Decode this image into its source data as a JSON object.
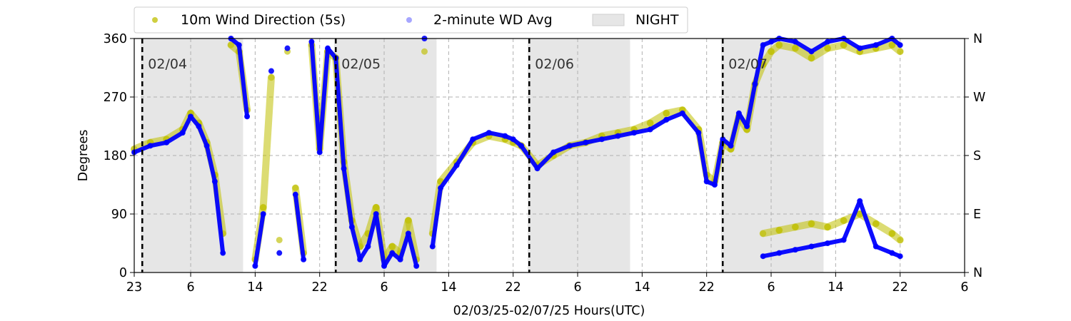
{
  "chart_data": {
    "type": "scatter",
    "xlabel": "02/03/25-02/07/25  Hours(UTC)",
    "ylabel": "Degrees",
    "ylim": [
      0,
      360
    ],
    "xlim_hours_from_start": [
      0,
      103
    ],
    "x_ticks": [
      "23",
      "6",
      "14",
      "22",
      "6",
      "14",
      "22",
      "6",
      "14",
      "22",
      "6",
      "14",
      "22",
      "6"
    ],
    "x_tick_hours": [
      0,
      7,
      15,
      23,
      31,
      39,
      47,
      55,
      63,
      71,
      79,
      87,
      95,
      103
    ],
    "y_ticks": [
      "0",
      "90",
      "180",
      "270",
      "360"
    ],
    "y_tick_values": [
      0,
      90,
      180,
      270,
      360
    ],
    "y2_ticks": [
      "N",
      "E",
      "S",
      "W",
      "N"
    ],
    "grid": true,
    "legend": {
      "placement": "top-left, above plot",
      "entries": [
        "10m Wind Direction (5s)",
        "2-minute WD Avg",
        "NIGHT"
      ]
    },
    "day_markers": [
      {
        "hour": 1.0,
        "label": "02/04"
      },
      {
        "hour": 25.0,
        "label": "02/05"
      },
      {
        "hour": 49.0,
        "label": "02/06"
      },
      {
        "hour": 73.0,
        "label": "02/07"
      }
    ],
    "night_bands": [
      [
        0.8,
        13.5
      ],
      [
        24.8,
        37.5
      ],
      [
        48.8,
        61.5
      ],
      [
        72.8,
        85.5
      ]
    ],
    "colors": {
      "wind_direction": "#bfbf00",
      "wd_avg": "#0000ff",
      "night": "#e6e6e6",
      "grid": "#b0b0b0",
      "day_marker": "#000000"
    },
    "series": [
      {
        "name": "10m Wind Direction (5s)",
        "color": "#bfbf00",
        "x": [
          0,
          2,
          4,
          6,
          7,
          8,
          9,
          10,
          11,
          12,
          13,
          14,
          15,
          16,
          17,
          18,
          19,
          20,
          21,
          22,
          23,
          24,
          25,
          26,
          27,
          28,
          29,
          30,
          31,
          32,
          33,
          34,
          35,
          36,
          37,
          38,
          40,
          42,
          44,
          46,
          47,
          48,
          50,
          52,
          54,
          56,
          58,
          60,
          62,
          64,
          66,
          68,
          70,
          71,
          72,
          73,
          74,
          75,
          76,
          77,
          78,
          79,
          80,
          82,
          84,
          86,
          88,
          90,
          92,
          94,
          95
        ],
        "values": [
          190,
          200,
          205,
          220,
          245,
          230,
          200,
          150,
          60,
          350,
          340,
          250,
          20,
          100,
          300,
          50,
          340,
          130,
          30,
          350,
          190,
          340,
          330,
          170,
          80,
          40,
          60,
          100,
          20,
          40,
          30,
          80,
          20,
          340,
          60,
          140,
          170,
          200,
          210,
          205,
          200,
          195,
          165,
          180,
          195,
          200,
          210,
          215,
          220,
          230,
          245,
          250,
          220,
          150,
          140,
          200,
          190,
          240,
          220,
          290,
          320,
          340,
          350,
          345,
          330,
          345,
          350,
          340,
          345,
          350,
          340
        ]
      },
      {
        "name": "2-minute WD Avg",
        "color": "#0000ff",
        "x": [
          0,
          2,
          4,
          6,
          7,
          8,
          9,
          10,
          11,
          12,
          13,
          14,
          15,
          16,
          17,
          18,
          19,
          20,
          21,
          22,
          23,
          24,
          25,
          26,
          27,
          28,
          29,
          30,
          31,
          32,
          33,
          34,
          35,
          36,
          37,
          38,
          40,
          42,
          44,
          46,
          47,
          48,
          50,
          52,
          54,
          56,
          58,
          60,
          62,
          64,
          66,
          68,
          70,
          71,
          72,
          73,
          74,
          75,
          76,
          77,
          78,
          79,
          80,
          82,
          84,
          86,
          88,
          90,
          92,
          94,
          95
        ],
        "values": [
          185,
          195,
          200,
          215,
          240,
          225,
          195,
          140,
          30,
          360,
          350,
          240,
          10,
          90,
          310,
          30,
          345,
          120,
          20,
          355,
          185,
          345,
          330,
          160,
          70,
          20,
          40,
          90,
          10,
          30,
          20,
          60,
          10,
          360,
          40,
          130,
          165,
          205,
          215,
          210,
          205,
          195,
          160,
          185,
          195,
          200,
          205,
          210,
          215,
          220,
          235,
          245,
          215,
          140,
          135,
          205,
          195,
          245,
          225,
          290,
          350,
          355,
          360,
          355,
          340,
          355,
          360,
          345,
          350,
          360,
          350
        ]
      },
      {
        "name": "10m Wind Direction (5s)",
        "color": "#bfbf00",
        "x": [
          78,
          80,
          82,
          84,
          86,
          88,
          90,
          92,
          94,
          95
        ],
        "values": [
          60,
          65,
          70,
          75,
          70,
          80,
          90,
          75,
          60,
          50
        ]
      },
      {
        "name": "2-minute WD Avg",
        "color": "#0000ff",
        "x": [
          78,
          80,
          82,
          84,
          86,
          88,
          90,
          92,
          94,
          95
        ],
        "values": [
          25,
          30,
          35,
          40,
          45,
          50,
          110,
          40,
          30,
          25
        ]
      }
    ]
  }
}
